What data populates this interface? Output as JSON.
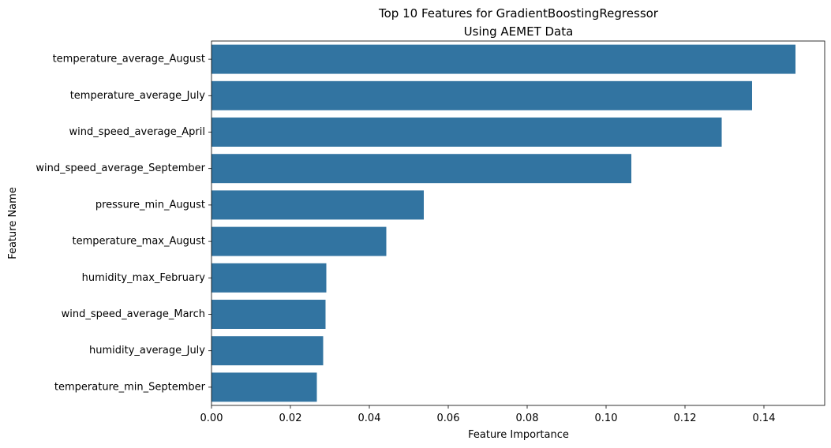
{
  "chart_data": {
    "type": "bar",
    "orientation": "horizontal",
    "title": "Top 10 Features for GradientBoostingRegressor\nUsing AEMET Data",
    "xlabel": "Feature Importance",
    "ylabel": "Feature Name",
    "categories": [
      "temperature_average_August",
      "temperature_average_July",
      "wind_speed_average_April",
      "wind_speed_average_September",
      "pressure_min_August",
      "temperature_max_August",
      "humidity_max_February",
      "wind_speed_average_March",
      "humidity_average_July",
      "temperature_min_September"
    ],
    "values": [
      0.148,
      0.137,
      0.1293,
      0.1064,
      0.0538,
      0.0443,
      0.0291,
      0.0289,
      0.0283,
      0.0267
    ],
    "xlim": [
      0,
      0.1554
    ],
    "xticks": [
      0.0,
      0.02,
      0.04,
      0.06,
      0.08,
      0.1,
      0.12,
      0.14
    ],
    "xtick_labels": [
      "0.00",
      "0.02",
      "0.04",
      "0.06",
      "0.08",
      "0.10",
      "0.12",
      "0.14"
    ],
    "grid": false,
    "legend": "none",
    "bar_color": "#3274a1"
  }
}
